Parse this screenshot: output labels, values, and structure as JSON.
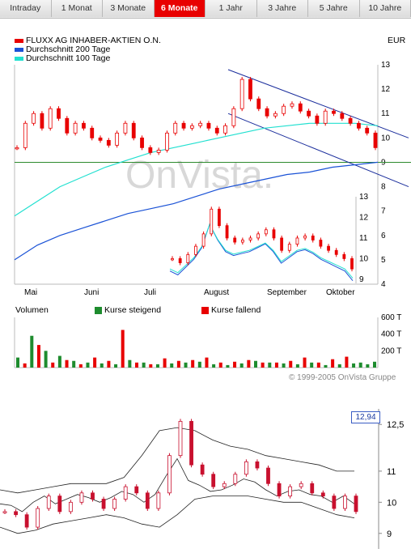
{
  "tabs": [
    {
      "label": "Intraday",
      "active": false
    },
    {
      "label": "1 Monat",
      "active": false
    },
    {
      "label": "3 Monate",
      "active": false
    },
    {
      "label": "6 Monate",
      "active": true
    },
    {
      "label": "1 Jahr",
      "active": false
    },
    {
      "label": "3 Jahre",
      "active": false
    },
    {
      "label": "5 Jahre",
      "active": false
    },
    {
      "label": "10 Jahre",
      "active": false
    }
  ],
  "legend": {
    "stock_name": "FLUXX AG INHABER-AKTIEN O.N.",
    "avg200": "Durchschnitt 200 Tage",
    "avg100": "Durchschnitt 100 Tage",
    "currency": "EUR"
  },
  "colors": {
    "stock": "#e80000",
    "avg200": "#1a52d6",
    "avg100": "#22e0d0",
    "rising": "#1e8c2e",
    "falling": "#e80000",
    "channel": "#1a2d9c",
    "support": "#2e8b2e"
  },
  "watermark": "OnVista.",
  "copyright": "© 1999-2005 OnVista Gruppe",
  "volume_legend": {
    "title": "Volumen",
    "rising": "Kurse steigend",
    "falling": "Kurse fallend"
  },
  "chart_data": [
    {
      "type": "line",
      "title": "FLUXX AG INHABER-AKTIEN O.N.",
      "ylabel": "EUR",
      "x_ticks": [
        "Mai",
        "Juni",
        "Juli",
        "August",
        "September",
        "Oktober"
      ],
      "y_ticks": [
        4,
        5,
        6,
        7,
        8,
        9,
        10,
        11,
        12,
        13
      ],
      "ylim": [
        4,
        13
      ],
      "series": [
        {
          "name": "FLUXX AG INHABER-AKTIEN O.N.",
          "values": [
            9.6,
            10.6,
            11.0,
            10.4,
            11.2,
            10.8,
            10.2,
            10.6,
            10.4,
            10.0,
            9.9,
            9.7,
            10.2,
            10.6,
            10.0,
            9.6,
            9.4,
            9.5,
            10.2,
            10.6,
            10.4,
            10.5,
            10.6,
            10.4,
            10.2,
            10.5,
            11.2,
            12.4,
            11.6,
            11.2,
            10.9,
            11.0,
            11.3,
            11.4,
            11.1,
            10.9,
            10.6,
            11.1,
            11.0,
            10.8,
            10.6,
            10.4,
            10.2,
            9.6
          ]
        },
        {
          "name": "Durchschnitt 200 Tage",
          "values": [
            5.0,
            5.6,
            6.0,
            6.3,
            6.6,
            6.9,
            7.1,
            7.3,
            7.6,
            7.9,
            8.1,
            8.3,
            8.5,
            8.6,
            8.8,
            8.9,
            9.0
          ]
        },
        {
          "name": "Durchschnitt 100 Tage",
          "values": [
            6.8,
            7.4,
            8.0,
            8.4,
            8.8,
            9.1,
            9.4,
            9.6,
            9.8,
            10.0,
            10.2,
            10.4,
            10.5,
            10.6,
            10.6,
            10.6,
            10.5
          ]
        }
      ],
      "support_level": 9.0
    },
    {
      "type": "line",
      "inset": true,
      "x_ticks": [],
      "y_ticks": [
        9,
        10,
        11,
        12,
        13
      ],
      "ylim": [
        8.8,
        13
      ],
      "series": [
        {
          "name": "Kurs",
          "values": [
            10.0,
            9.8,
            10.2,
            10.6,
            11.2,
            12.4,
            11.6,
            11.0,
            10.8,
            10.9,
            11.0,
            11.2,
            11.4,
            11.0,
            10.4,
            10.7,
            11.0,
            11.1,
            10.9,
            10.6,
            10.4,
            10.2,
            10.0,
            9.5
          ]
        }
      ]
    },
    {
      "type": "bar",
      "title": "Volumen",
      "y_ticks": [
        "200 T",
        "400 T",
        "600 T"
      ],
      "ylim": [
        0,
        600
      ],
      "series": [
        {
          "name": "Kurse steigend",
          "values": [
            120,
            380,
            200,
            140,
            80,
            60,
            50,
            40,
            90,
            60,
            40,
            50,
            60,
            70,
            40,
            30,
            50,
            80,
            60,
            50,
            40,
            60,
            30,
            40,
            50,
            60,
            40,
            70
          ]
        },
        {
          "name": "Kurse fallend",
          "values": [
            50,
            270,
            60,
            90,
            40,
            120,
            80,
            450,
            60,
            40,
            110,
            80,
            90,
            120,
            60,
            70,
            90,
            60,
            60,
            80,
            120,
            60,
            100,
            130
          ]
        }
      ]
    },
    {
      "type": "line",
      "title": "",
      "y_ticks": [
        "9",
        "10",
        "11",
        "12,5"
      ],
      "ylim": [
        8.5,
        13
      ],
      "last_value": "12,94",
      "series": [
        {
          "name": "Kurs",
          "values": [
            9.7,
            9.6,
            9.2,
            9.8,
            10.2,
            9.7,
            10.0,
            10.3,
            10.1,
            9.8,
            10.1,
            10.5,
            10.3,
            9.8,
            10.3,
            11.5,
            12.6,
            11.2,
            10.9,
            10.5,
            10.6,
            10.9,
            11.3,
            11.1,
            10.6,
            10.2,
            10.5,
            10.6,
            10.3,
            10.2,
            9.8,
            10.2,
            9.7
          ]
        },
        {
          "name": "Oberes Band",
          "values": [
            10.4,
            10.3,
            10.4,
            10.5,
            10.6,
            10.6,
            10.6,
            10.8,
            11.5,
            12.3,
            12.4,
            12.3,
            12.0,
            11.8,
            11.7,
            11.5,
            11.4,
            11.3,
            11.2,
            11.0,
            11.0
          ]
        },
        {
          "name": "Unteres Band",
          "values": [
            9.2,
            9.0,
            9.1,
            9.3,
            9.4,
            9.5,
            9.6,
            9.5,
            9.3,
            9.2,
            9.6,
            10.1,
            10.2,
            10.2,
            10.2,
            10.1,
            10.0,
            10.0,
            9.8,
            9.6,
            9.5
          ]
        }
      ]
    }
  ]
}
